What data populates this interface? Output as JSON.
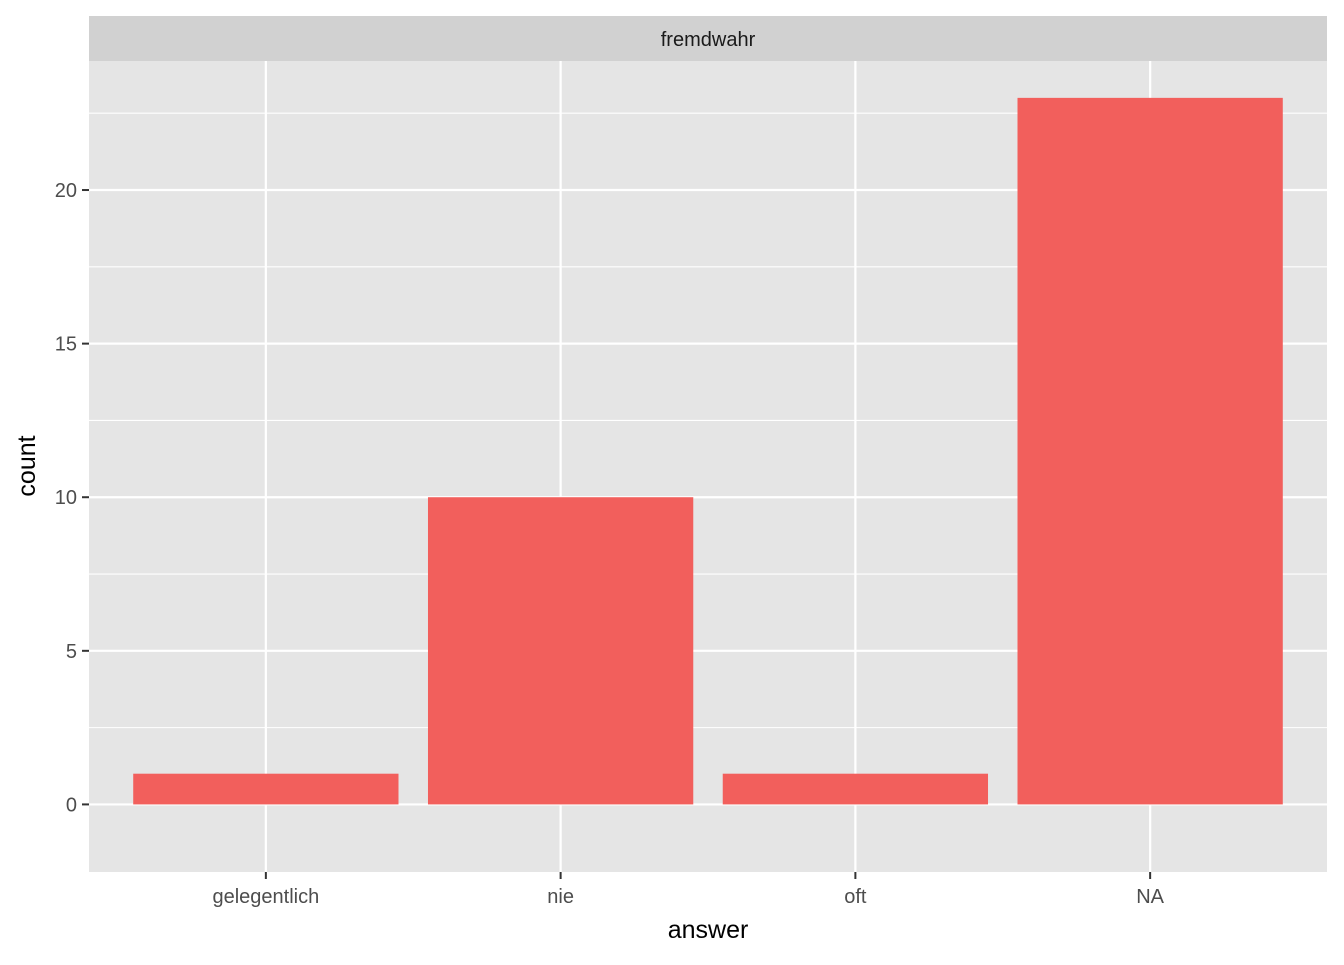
{
  "chart_data": {
    "type": "bar",
    "facet_label": "fremdwahr",
    "categories": [
      "gelegentlich",
      "nie",
      "oft",
      "NA"
    ],
    "values": [
      1,
      10,
      1,
      23
    ],
    "xlabel": "answer",
    "ylabel": "count",
    "ylim": [
      -2.2,
      24.2
    ],
    "yticks": [
      0,
      5,
      10,
      15,
      20
    ],
    "ytick_labels": [
      "0",
      "5",
      "10",
      "15",
      "20"
    ],
    "minor_ticks": [
      2.5,
      7.5,
      12.5,
      17.5,
      22.5
    ],
    "grid": true,
    "bar_color": "#F25F5C",
    "panel_background": "#E5E5E5",
    "strip_background": "#D1D1D1",
    "grid_color": "#FFFFFF"
  }
}
